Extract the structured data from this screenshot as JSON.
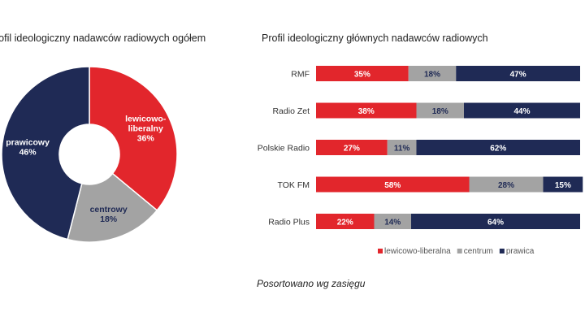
{
  "colors": {
    "lewicowo": "#e2262c",
    "centrum": "#a3a3a3",
    "prawica": "#1f2a55",
    "text_on_red": "#ffffff",
    "text_on_gray": "#1f2a55",
    "text_on_navy": "#ffffff"
  },
  "chart_data": [
    {
      "type": "pie",
      "title": "rofil ideologiczny nadawców radiowych ogółem",
      "slices": [
        {
          "label": "lewicowo-liberalny",
          "label_lines": [
            "lewicowo-",
            "liberalny"
          ],
          "value": 36,
          "value_label": "36%",
          "color_key": "lewicowo"
        },
        {
          "label": "centrowy",
          "label_lines": [
            "centrowy"
          ],
          "value": 18,
          "value_label": "18%",
          "color_key": "centrum"
        },
        {
          "label": "prawicowy",
          "label_lines": [
            "prawicowy"
          ],
          "value": 46,
          "value_label": "46%",
          "color_key": "prawica"
        }
      ]
    },
    {
      "type": "bar",
      "orientation": "horizontal",
      "stacked": true,
      "title": "Profil ideologiczny głównych nadawców radiowych",
      "categories": [
        "RMF",
        "Radio Zet",
        "Polskie Radio",
        "TOK FM",
        "Radio Plus"
      ],
      "series": [
        {
          "name": "lewicowo-liberalna",
          "color_key": "lewicowo",
          "values": [
            35,
            38,
            27,
            58,
            22
          ],
          "labels": [
            "35%",
            "38%",
            "27%",
            "58%",
            "22%"
          ]
        },
        {
          "name": "centrum",
          "color_key": "centrum",
          "values": [
            18,
            18,
            11,
            28,
            14
          ],
          "labels": [
            "18%",
            "18%",
            "11%",
            "28%",
            "14%"
          ]
        },
        {
          "name": "prawica",
          "color_key": "prawica",
          "values": [
            47,
            44,
            62,
            15,
            64
          ],
          "labels": [
            "47%",
            "44%",
            "62%",
            "15%",
            "64%"
          ]
        }
      ],
      "xlim": [
        0,
        100
      ],
      "legend_position": "bottom"
    }
  ],
  "note": "Posortowano wg zasięgu"
}
